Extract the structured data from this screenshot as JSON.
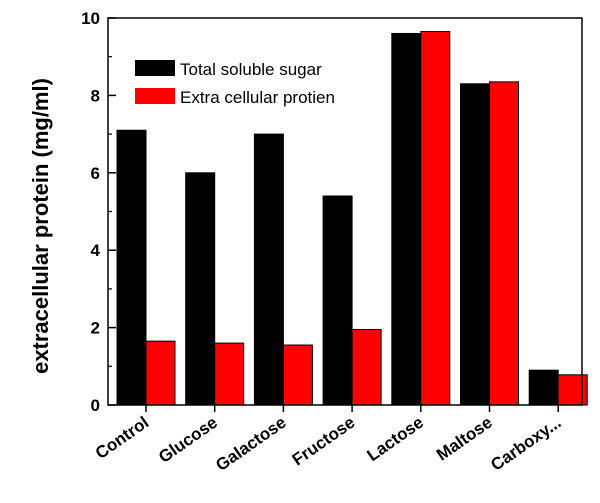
{
  "chart_data": {
    "type": "bar",
    "categories": [
      "Control",
      "Glucose",
      "Galactose",
      "Fructose",
      "Lactose",
      "Maltose",
      "Carboxy..."
    ],
    "series": [
      {
        "name": "Total soluble sugar",
        "values": [
          7.1,
          6.0,
          7.0,
          5.4,
          9.6,
          8.3,
          0.9
        ],
        "color": "#000000"
      },
      {
        "name": "Extra cellular protien",
        "values": [
          1.65,
          1.6,
          1.55,
          1.95,
          9.65,
          8.35,
          0.78
        ],
        "color": "#ff0000"
      }
    ],
    "title": "",
    "xlabel": "",
    "ylabel": "extracellular protein (mg/ml)",
    "ylim": [
      0,
      10
    ],
    "yticks": [
      "0",
      "2",
      "4",
      "6",
      "8",
      "10"
    ],
    "legend": "top-left",
    "grid": false
  }
}
